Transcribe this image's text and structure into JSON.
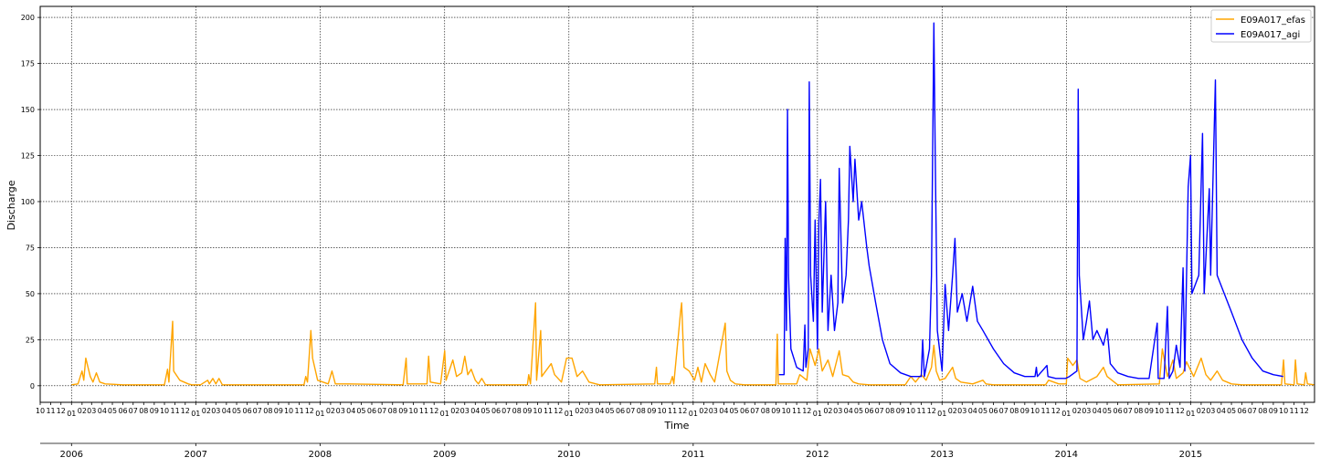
{
  "chart_data": {
    "type": "line",
    "xlabel": "Time",
    "ylabel": "Discharge",
    "xlim": [
      "2005-10-01",
      "2015-12-31"
    ],
    "ylim": [
      -9,
      206
    ],
    "grid": true,
    "legend_position": "top-right",
    "y_ticks": [
      0,
      25,
      50,
      75,
      100,
      125,
      150,
      175,
      200
    ],
    "year_labels": [
      "2006",
      "2007",
      "2008",
      "2009",
      "2010",
      "2011",
      "2012",
      "2013",
      "2014",
      "2015"
    ],
    "month_labels": [
      "01",
      "02",
      "03",
      "04",
      "05",
      "06",
      "07",
      "08",
      "09",
      "10",
      "11",
      "12"
    ],
    "series": [
      {
        "name": "E09A017_efas",
        "color": "#FFA500",
        "points": [
          [
            "2006-01-01",
            0.5
          ],
          [
            "2006-01-20",
            1
          ],
          [
            "2006-02-01",
            8
          ],
          [
            "2006-02-06",
            3
          ],
          [
            "2006-02-12",
            15
          ],
          [
            "2006-02-25",
            5
          ],
          [
            "2006-03-05",
            2
          ],
          [
            "2006-03-15",
            7
          ],
          [
            "2006-03-25",
            2
          ],
          [
            "2006-04-10",
            1
          ],
          [
            "2006-06-01",
            0.5
          ],
          [
            "2006-10-01",
            0.5
          ],
          [
            "2006-10-10",
            9
          ],
          [
            "2006-10-14",
            2
          ],
          [
            "2006-10-25",
            35
          ],
          [
            "2006-10-28",
            8
          ],
          [
            "2006-11-15",
            3
          ],
          [
            "2006-12-10",
            1
          ],
          [
            "2006-12-20",
            0.5
          ],
          [
            "2007-01-15",
            0.5
          ],
          [
            "2007-02-05",
            3
          ],
          [
            "2007-02-10",
            1
          ],
          [
            "2007-02-20",
            4
          ],
          [
            "2007-03-01",
            1
          ],
          [
            "2007-03-10",
            4
          ],
          [
            "2007-03-20",
            0.5
          ],
          [
            "2007-11-15",
            0.5
          ],
          [
            "2007-11-20",
            5
          ],
          [
            "2007-11-25",
            2
          ],
          [
            "2007-12-05",
            30
          ],
          [
            "2007-12-10",
            15
          ],
          [
            "2007-12-25",
            3
          ],
          [
            "2008-01-25",
            1
          ],
          [
            "2008-02-05",
            8
          ],
          [
            "2008-02-15",
            1
          ],
          [
            "2008-03-15",
            1
          ],
          [
            "2008-09-01",
            0.5
          ],
          [
            "2008-09-10",
            15
          ],
          [
            "2008-09-13",
            1
          ],
          [
            "2008-11-10",
            1
          ],
          [
            "2008-11-15",
            16
          ],
          [
            "2008-11-20",
            2
          ],
          [
            "2008-12-20",
            1
          ],
          [
            "2009-01-01",
            19
          ],
          [
            "2009-01-05",
            3
          ],
          [
            "2009-01-25",
            14
          ],
          [
            "2009-02-05",
            5
          ],
          [
            "2009-02-20",
            7
          ],
          [
            "2009-03-01",
            16
          ],
          [
            "2009-03-10",
            6
          ],
          [
            "2009-03-20",
            9
          ],
          [
            "2009-04-01",
            3
          ],
          [
            "2009-04-10",
            1
          ],
          [
            "2009-04-20",
            4
          ],
          [
            "2009-05-01",
            0.5
          ],
          [
            "2009-09-01",
            0.5
          ],
          [
            "2009-09-05",
            6
          ],
          [
            "2009-09-10",
            1
          ],
          [
            "2009-09-25",
            45
          ],
          [
            "2009-09-28",
            3
          ],
          [
            "2009-10-10",
            30
          ],
          [
            "2009-10-13",
            5
          ],
          [
            "2009-11-10",
            12
          ],
          [
            "2009-11-20",
            6
          ],
          [
            "2009-12-10",
            2
          ],
          [
            "2009-12-25",
            15
          ],
          [
            "2010-01-10",
            15
          ],
          [
            "2010-01-25",
            5
          ],
          [
            "2010-02-10",
            8
          ],
          [
            "2010-03-01",
            2
          ],
          [
            "2010-04-01",
            0.5
          ],
          [
            "2010-09-10",
            1
          ],
          [
            "2010-09-15",
            10
          ],
          [
            "2010-09-18",
            1
          ],
          [
            "2010-10-25",
            1
          ],
          [
            "2010-11-01",
            5
          ],
          [
            "2010-11-05",
            1
          ],
          [
            "2010-11-25",
            40
          ],
          [
            "2010-11-28",
            45
          ],
          [
            "2010-12-05",
            10
          ],
          [
            "2010-12-20",
            8
          ],
          [
            "2011-01-05",
            3
          ],
          [
            "2011-01-15",
            10
          ],
          [
            "2011-01-25",
            2
          ],
          [
            "2011-02-05",
            12
          ],
          [
            "2011-02-20",
            6
          ],
          [
            "2011-03-05",
            2
          ],
          [
            "2011-04-05",
            34
          ],
          [
            "2011-04-10",
            8
          ],
          [
            "2011-04-20",
            3
          ],
          [
            "2011-05-05",
            1
          ],
          [
            "2011-06-01",
            0.5
          ],
          [
            "2011-09-01",
            0.5
          ],
          [
            "2011-09-05",
            28
          ],
          [
            "2011-09-08",
            1
          ],
          [
            "2011-11-01",
            1
          ],
          [
            "2011-11-10",
            6
          ],
          [
            "2011-12-01",
            3
          ],
          [
            "2011-12-10",
            20
          ],
          [
            "2011-12-25",
            11
          ],
          [
            "2012-01-05",
            20
          ],
          [
            "2012-01-15",
            8
          ],
          [
            "2012-02-01",
            14
          ],
          [
            "2012-02-15",
            5
          ],
          [
            "2012-03-05",
            19
          ],
          [
            "2012-03-15",
            6
          ],
          [
            "2012-04-01",
            5
          ],
          [
            "2012-04-15",
            2
          ],
          [
            "2012-05-01",
            1
          ],
          [
            "2012-06-01",
            0.5
          ],
          [
            "2012-09-15",
            0.5
          ],
          [
            "2012-10-01",
            5
          ],
          [
            "2012-10-15",
            2
          ],
          [
            "2012-11-01",
            6
          ],
          [
            "2012-11-15",
            3
          ],
          [
            "2012-12-01",
            10
          ],
          [
            "2012-12-08",
            22
          ],
          [
            "2012-12-15",
            8
          ],
          [
            "2012-12-25",
            3
          ],
          [
            "2013-01-10",
            4
          ],
          [
            "2013-02-01",
            10
          ],
          [
            "2013-02-10",
            4
          ],
          [
            "2013-02-25",
            2
          ],
          [
            "2013-04-01",
            1
          ],
          [
            "2013-05-01",
            3
          ],
          [
            "2013-05-10",
            1
          ],
          [
            "2013-06-01",
            0.5
          ],
          [
            "2013-11-01",
            0.5
          ],
          [
            "2013-11-10",
            3
          ],
          [
            "2013-12-10",
            1
          ],
          [
            "2014-01-01",
            1
          ],
          [
            "2014-01-05",
            15
          ],
          [
            "2014-01-20",
            11
          ],
          [
            "2014-02-01",
            14
          ],
          [
            "2014-02-10",
            4
          ],
          [
            "2014-03-01",
            2
          ],
          [
            "2014-04-01",
            5
          ],
          [
            "2014-04-20",
            10
          ],
          [
            "2014-05-01",
            5
          ],
          [
            "2014-05-15",
            3
          ],
          [
            "2014-06-01",
            0.5
          ],
          [
            "2014-10-01",
            1
          ],
          [
            "2014-10-10",
            20
          ],
          [
            "2014-10-25",
            5
          ],
          [
            "2014-11-10",
            14
          ],
          [
            "2014-11-20",
            4
          ],
          [
            "2014-12-10",
            7
          ],
          [
            "2014-12-20",
            13
          ],
          [
            "2015-01-10",
            5
          ],
          [
            "2015-02-01",
            15
          ],
          [
            "2015-02-15",
            6
          ],
          [
            "2015-03-01",
            3
          ],
          [
            "2015-03-20",
            8
          ],
          [
            "2015-04-05",
            3
          ],
          [
            "2015-05-01",
            1
          ],
          [
            "2015-06-01",
            0.5
          ],
          [
            "2015-09-25",
            0.5
          ],
          [
            "2015-10-01",
            14
          ],
          [
            "2015-10-05",
            1
          ],
          [
            "2015-11-01",
            0.5
          ],
          [
            "2015-11-05",
            14
          ],
          [
            "2015-11-10",
            1
          ],
          [
            "2015-12-01",
            0.5
          ],
          [
            "2015-12-05",
            7
          ],
          [
            "2015-12-10",
            1
          ],
          [
            "2015-12-31",
            0.5
          ]
        ]
      },
      {
        "name": "E09A017_agi",
        "color": "#0000FF",
        "points": [
          [
            "2011-09-10",
            6
          ],
          [
            "2011-09-25",
            6
          ],
          [
            "2011-09-28",
            80
          ],
          [
            "2011-10-02",
            30
          ],
          [
            "2011-10-05",
            150
          ],
          [
            "2011-10-08",
            60
          ],
          [
            "2011-10-15",
            20
          ],
          [
            "2011-11-01",
            10
          ],
          [
            "2011-11-20",
            8
          ],
          [
            "2011-11-25",
            33
          ],
          [
            "2011-11-28",
            10
          ],
          [
            "2011-12-05",
            20
          ],
          [
            "2011-12-08",
            165
          ],
          [
            "2011-12-12",
            60
          ],
          [
            "2011-12-20",
            35
          ],
          [
            "2011-12-25",
            90
          ],
          [
            "2012-01-01",
            20
          ],
          [
            "2012-01-05",
            88
          ],
          [
            "2012-01-10",
            112
          ],
          [
            "2012-01-15",
            40
          ],
          [
            "2012-01-25",
            100
          ],
          [
            "2012-02-01",
            30
          ],
          [
            "2012-02-10",
            60
          ],
          [
            "2012-02-20",
            30
          ],
          [
            "2012-03-01",
            45
          ],
          [
            "2012-03-05",
            118
          ],
          [
            "2012-03-15",
            45
          ],
          [
            "2012-03-25",
            60
          ],
          [
            "2012-04-01",
            90
          ],
          [
            "2012-04-05",
            130
          ],
          [
            "2012-04-15",
            100
          ],
          [
            "2012-04-20",
            123
          ],
          [
            "2012-05-01",
            90
          ],
          [
            "2012-05-10",
            100
          ],
          [
            "2012-05-25",
            75
          ],
          [
            "2012-06-01",
            65
          ],
          [
            "2012-06-20",
            45
          ],
          [
            "2012-07-10",
            25
          ],
          [
            "2012-08-01",
            12
          ],
          [
            "2012-09-01",
            7
          ],
          [
            "2012-10-01",
            5
          ],
          [
            "2012-11-01",
            5
          ],
          [
            "2012-11-05",
            25
          ],
          [
            "2012-11-10",
            5
          ],
          [
            "2012-11-25",
            20
          ],
          [
            "2012-12-01",
            60
          ],
          [
            "2012-12-08",
            197
          ],
          [
            "2012-12-12",
            125
          ],
          [
            "2012-12-18",
            30
          ],
          [
            "2013-01-01",
            8
          ],
          [
            "2013-01-10",
            55
          ],
          [
            "2013-01-20",
            30
          ],
          [
            "2013-02-01",
            60
          ],
          [
            "2013-02-08",
            80
          ],
          [
            "2013-02-15",
            40
          ],
          [
            "2013-03-01",
            50
          ],
          [
            "2013-03-15",
            35
          ],
          [
            "2013-04-01",
            54
          ],
          [
            "2013-04-15",
            35
          ],
          [
            "2013-05-01",
            30
          ],
          [
            "2013-06-01",
            20
          ],
          [
            "2013-07-01",
            12
          ],
          [
            "2013-08-01",
            7
          ],
          [
            "2013-09-01",
            5
          ],
          [
            "2013-10-01",
            5
          ],
          [
            "2013-10-05",
            10
          ],
          [
            "2013-10-08",
            5
          ],
          [
            "2013-11-05",
            11
          ],
          [
            "2013-11-08",
            5
          ],
          [
            "2013-12-01",
            4
          ],
          [
            "2013-12-30",
            4
          ],
          [
            "2014-01-10",
            5
          ],
          [
            "2014-02-01",
            8
          ],
          [
            "2014-02-05",
            161
          ],
          [
            "2014-02-08",
            60
          ],
          [
            "2014-02-20",
            25
          ],
          [
            "2014-03-01",
            35
          ],
          [
            "2014-03-10",
            46
          ],
          [
            "2014-03-20",
            25
          ],
          [
            "2014-04-01",
            30
          ],
          [
            "2014-04-20",
            22
          ],
          [
            "2014-05-01",
            31
          ],
          [
            "2014-05-10",
            12
          ],
          [
            "2014-06-01",
            7
          ],
          [
            "2014-07-01",
            5
          ],
          [
            "2014-08-01",
            4
          ],
          [
            "2014-09-01",
            4
          ],
          [
            "2014-09-25",
            34
          ],
          [
            "2014-09-28",
            4
          ],
          [
            "2014-10-15",
            4
          ],
          [
            "2014-10-25",
            43
          ],
          [
            "2014-10-30",
            4
          ],
          [
            "2014-11-10",
            8
          ],
          [
            "2014-11-20",
            22
          ],
          [
            "2014-12-01",
            10
          ],
          [
            "2014-12-10",
            64
          ],
          [
            "2014-12-15",
            8
          ],
          [
            "2014-12-25",
            108
          ],
          [
            "2015-01-01",
            125
          ],
          [
            "2015-01-05",
            50
          ],
          [
            "2015-01-25",
            60
          ],
          [
            "2015-02-05",
            137
          ],
          [
            "2015-02-10",
            50
          ],
          [
            "2015-02-25",
            107
          ],
          [
            "2015-03-01",
            60
          ],
          [
            "2015-03-15",
            166
          ],
          [
            "2015-03-20",
            60
          ],
          [
            "2015-04-10",
            50
          ],
          [
            "2015-05-01",
            40
          ],
          [
            "2015-06-01",
            25
          ],
          [
            "2015-07-01",
            15
          ],
          [
            "2015-08-01",
            8
          ],
          [
            "2015-09-01",
            6
          ],
          [
            "2015-09-30",
            5
          ]
        ]
      }
    ]
  }
}
